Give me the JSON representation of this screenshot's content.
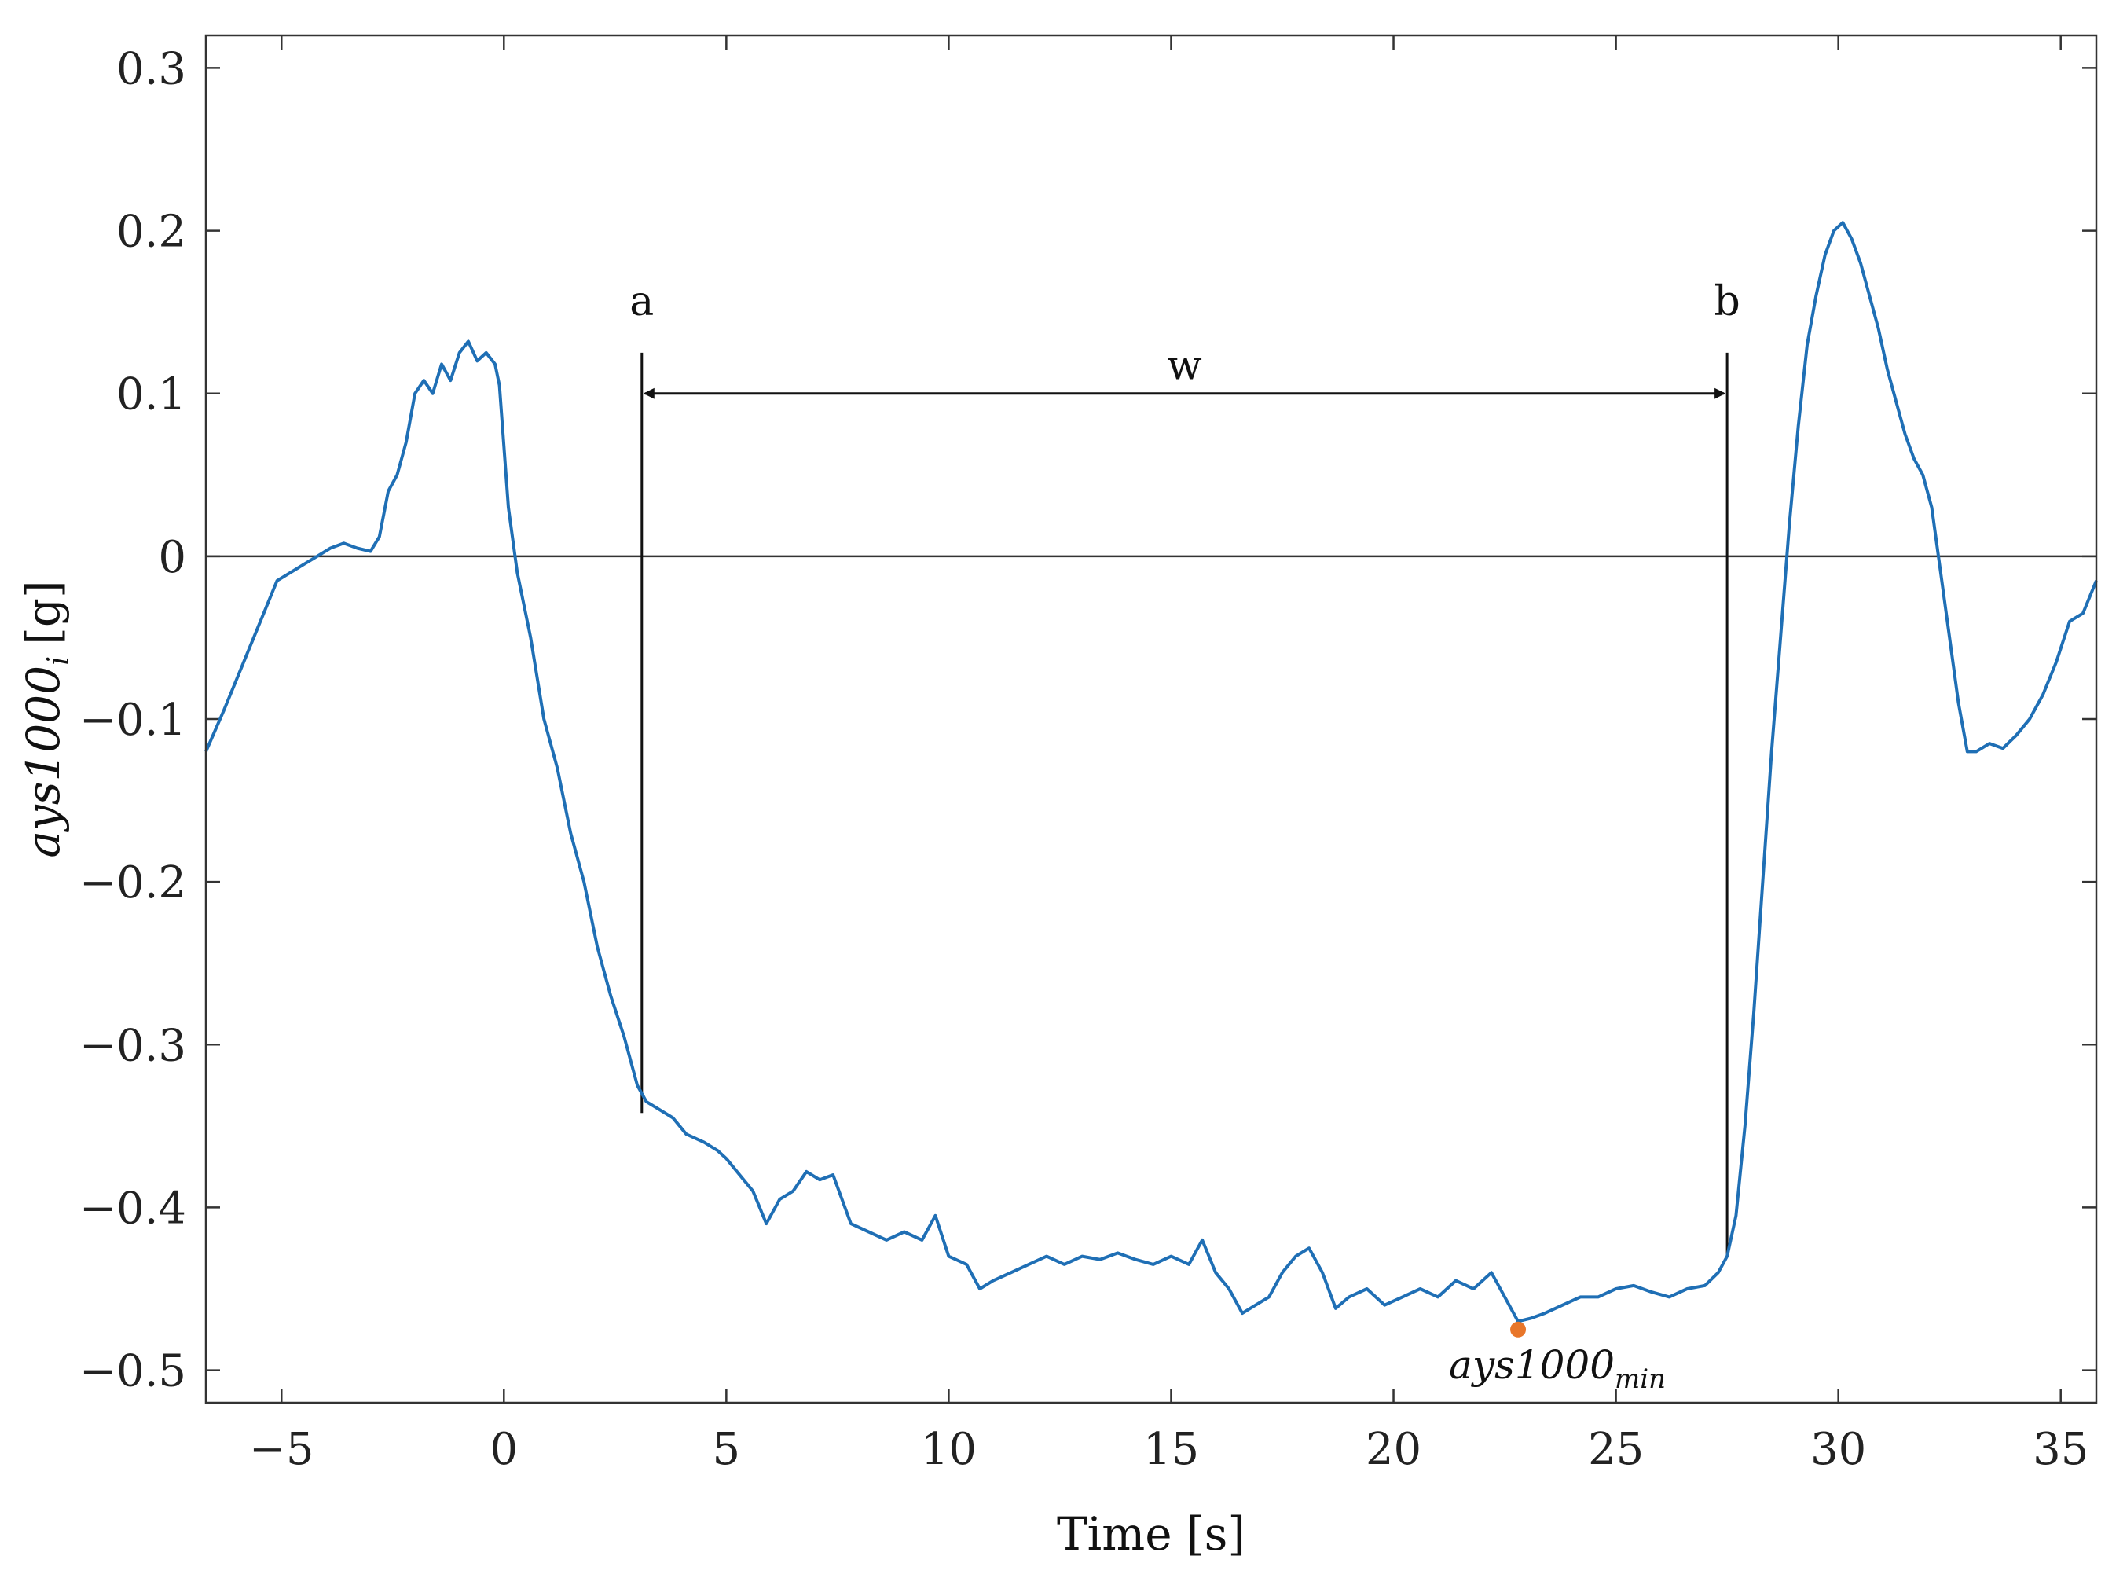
{
  "chart_data": {
    "type": "line",
    "xlabel": "Time [s]",
    "ylabel_main": "ays1000",
    "ylabel_sub": "i",
    "ylabel_unit": "[g]",
    "xlim": [
      -6.7,
      35.8
    ],
    "ylim": [
      -0.52,
      0.32
    ],
    "x_ticks": [
      -5,
      0,
      5,
      10,
      15,
      20,
      25,
      30,
      35
    ],
    "x_tick_labels": [
      "−5",
      "0",
      "5",
      "10",
      "15",
      "20",
      "25",
      "30",
      "35"
    ],
    "y_ticks": [
      -0.5,
      -0.4,
      -0.3,
      -0.2,
      -0.1,
      0,
      0.1,
      0.2,
      0.3
    ],
    "y_tick_labels": [
      "−0.5",
      "−0.4",
      "−0.3",
      "−0.2",
      "−0.1",
      "0",
      "0.1",
      "0.2",
      "0.3"
    ],
    "grid": false,
    "zero_line": true,
    "series_color": "#1f6fb5",
    "marker_color": "#e8762a",
    "series": [
      {
        "points": [
          [
            -6.7,
            -0.12
          ],
          [
            -6.3,
            -0.095
          ],
          [
            -6.0,
            -0.075
          ],
          [
            -5.7,
            -0.055
          ],
          [
            -5.4,
            -0.035
          ],
          [
            -5.1,
            -0.015
          ],
          [
            -4.8,
            -0.01
          ],
          [
            -4.5,
            -0.005
          ],
          [
            -4.2,
            0.0
          ],
          [
            -3.9,
            0.005
          ],
          [
            -3.6,
            0.008
          ],
          [
            -3.3,
            0.005
          ],
          [
            -3.0,
            0.003
          ],
          [
            -2.8,
            0.012
          ],
          [
            -2.6,
            0.04
          ],
          [
            -2.4,
            0.05
          ],
          [
            -2.2,
            0.07
          ],
          [
            -2.0,
            0.1
          ],
          [
            -1.8,
            0.108
          ],
          [
            -1.6,
            0.1
          ],
          [
            -1.4,
            0.118
          ],
          [
            -1.2,
            0.108
          ],
          [
            -1.0,
            0.125
          ],
          [
            -0.8,
            0.132
          ],
          [
            -0.6,
            0.12
          ],
          [
            -0.4,
            0.125
          ],
          [
            -0.2,
            0.118
          ],
          [
            -0.1,
            0.105
          ],
          [
            0.1,
            0.03
          ],
          [
            0.3,
            -0.01
          ],
          [
            0.6,
            -0.05
          ],
          [
            0.9,
            -0.1
          ],
          [
            1.2,
            -0.13
          ],
          [
            1.5,
            -0.17
          ],
          [
            1.8,
            -0.2
          ],
          [
            2.1,
            -0.24
          ],
          [
            2.4,
            -0.27
          ],
          [
            2.7,
            -0.295
          ],
          [
            3.0,
            -0.325
          ],
          [
            3.2,
            -0.335
          ],
          [
            3.5,
            -0.34
          ],
          [
            3.8,
            -0.345
          ],
          [
            4.1,
            -0.355
          ],
          [
            4.5,
            -0.36
          ],
          [
            4.8,
            -0.365
          ],
          [
            5.0,
            -0.37
          ],
          [
            5.3,
            -0.38
          ],
          [
            5.6,
            -0.39
          ],
          [
            5.9,
            -0.41
          ],
          [
            6.2,
            -0.395
          ],
          [
            6.5,
            -0.39
          ],
          [
            6.8,
            -0.378
          ],
          [
            7.1,
            -0.383
          ],
          [
            7.4,
            -0.38
          ],
          [
            7.8,
            -0.41
          ],
          [
            8.2,
            -0.415
          ],
          [
            8.6,
            -0.42
          ],
          [
            9.0,
            -0.415
          ],
          [
            9.4,
            -0.42
          ],
          [
            9.7,
            -0.405
          ],
          [
            10.0,
            -0.43
          ],
          [
            10.4,
            -0.435
          ],
          [
            10.7,
            -0.45
          ],
          [
            11.0,
            -0.445
          ],
          [
            11.4,
            -0.44
          ],
          [
            11.8,
            -0.435
          ],
          [
            12.2,
            -0.43
          ],
          [
            12.6,
            -0.435
          ],
          [
            13.0,
            -0.43
          ],
          [
            13.4,
            -0.432
          ],
          [
            13.8,
            -0.428
          ],
          [
            14.2,
            -0.432
          ],
          [
            14.6,
            -0.435
          ],
          [
            15.0,
            -0.43
          ],
          [
            15.4,
            -0.435
          ],
          [
            15.7,
            -0.42
          ],
          [
            16.0,
            -0.44
          ],
          [
            16.3,
            -0.45
          ],
          [
            16.6,
            -0.465
          ],
          [
            16.9,
            -0.46
          ],
          [
            17.2,
            -0.455
          ],
          [
            17.5,
            -0.44
          ],
          [
            17.8,
            -0.43
          ],
          [
            18.1,
            -0.425
          ],
          [
            18.4,
            -0.44
          ],
          [
            18.7,
            -0.462
          ],
          [
            19.0,
            -0.455
          ],
          [
            19.4,
            -0.45
          ],
          [
            19.8,
            -0.46
          ],
          [
            20.2,
            -0.455
          ],
          [
            20.6,
            -0.45
          ],
          [
            21.0,
            -0.455
          ],
          [
            21.4,
            -0.445
          ],
          [
            21.8,
            -0.45
          ],
          [
            22.2,
            -0.44
          ],
          [
            22.5,
            -0.455
          ],
          [
            22.8,
            -0.47
          ],
          [
            23.1,
            -0.468
          ],
          [
            23.4,
            -0.465
          ],
          [
            23.8,
            -0.46
          ],
          [
            24.2,
            -0.455
          ],
          [
            24.6,
            -0.455
          ],
          [
            25.0,
            -0.45
          ],
          [
            25.4,
            -0.448
          ],
          [
            25.8,
            -0.452
          ],
          [
            26.2,
            -0.455
          ],
          [
            26.6,
            -0.45
          ],
          [
            27.0,
            -0.448
          ],
          [
            27.3,
            -0.44
          ],
          [
            27.5,
            -0.43
          ],
          [
            27.7,
            -0.405
          ],
          [
            27.9,
            -0.35
          ],
          [
            28.1,
            -0.28
          ],
          [
            28.3,
            -0.2
          ],
          [
            28.5,
            -0.12
          ],
          [
            28.7,
            -0.05
          ],
          [
            28.9,
            0.02
          ],
          [
            29.1,
            0.08
          ],
          [
            29.3,
            0.13
          ],
          [
            29.5,
            0.16
          ],
          [
            29.7,
            0.185
          ],
          [
            29.9,
            0.2
          ],
          [
            30.1,
            0.205
          ],
          [
            30.3,
            0.195
          ],
          [
            30.5,
            0.18
          ],
          [
            30.7,
            0.16
          ],
          [
            30.9,
            0.14
          ],
          [
            31.1,
            0.115
          ],
          [
            31.3,
            0.095
          ],
          [
            31.5,
            0.075
          ],
          [
            31.7,
            0.06
          ],
          [
            31.9,
            0.05
          ],
          [
            32.1,
            0.03
          ],
          [
            32.3,
            -0.01
          ],
          [
            32.5,
            -0.05
          ],
          [
            32.7,
            -0.09
          ],
          [
            32.9,
            -0.12
          ],
          [
            33.1,
            -0.12
          ],
          [
            33.4,
            -0.115
          ],
          [
            33.7,
            -0.118
          ],
          [
            34.0,
            -0.11
          ],
          [
            34.3,
            -0.1
          ],
          [
            34.6,
            -0.085
          ],
          [
            34.9,
            -0.065
          ],
          [
            35.2,
            -0.04
          ],
          [
            35.5,
            -0.035
          ],
          [
            35.8,
            -0.015
          ]
        ]
      }
    ],
    "annotations": {
      "a_label": "a",
      "a_x": 3.1,
      "a_y_top": 0.125,
      "a_y_bottom": -0.342,
      "b_label": "b",
      "b_x": 27.5,
      "b_y_top": 0.125,
      "b_y_bottom": -0.43,
      "w_label": "w",
      "w_y": 0.1,
      "min_label_main": "ays1000",
      "min_label_sub": "min",
      "min_x": 22.8,
      "min_y": -0.475
    }
  }
}
